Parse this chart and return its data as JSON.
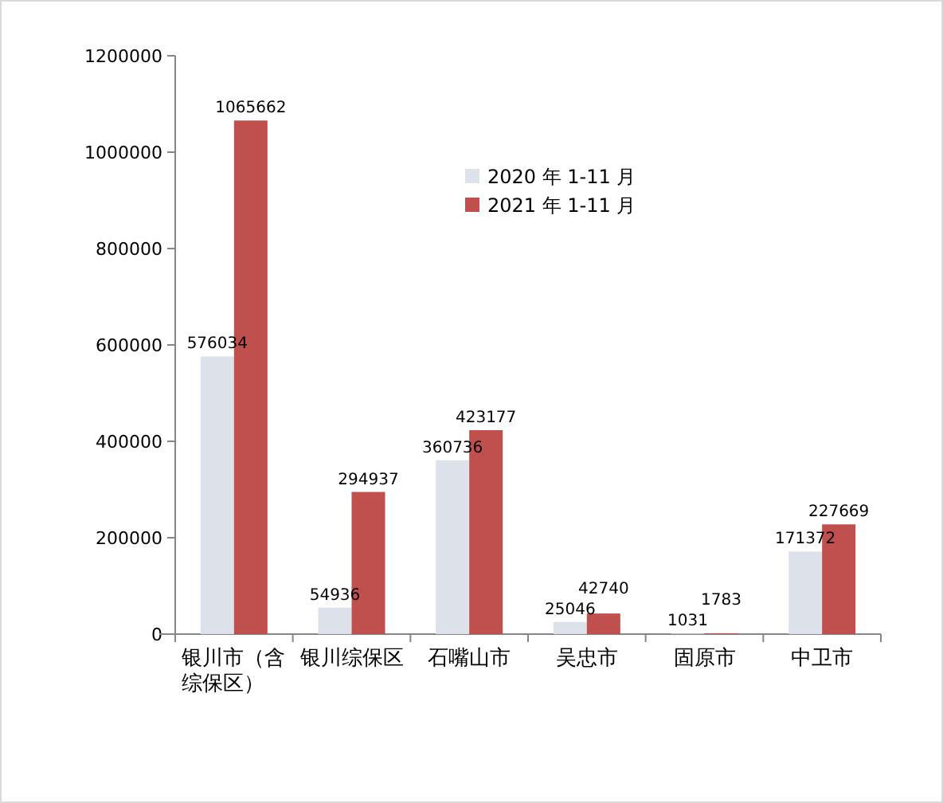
{
  "chart_data": {
    "type": "bar",
    "categories": [
      "银川市（含综保区）",
      "银川综保区",
      "石嘴山市",
      "吴忠市",
      "固原市",
      "中卫市"
    ],
    "series": [
      {
        "name": "2020 年 1-11 月",
        "color": "#dde1e9",
        "values": [
          576034,
          54936,
          360736,
          25046,
          1031,
          171372
        ]
      },
      {
        "name": "2021 年 1-11 月",
        "color": "#c0504d",
        "values": [
          1065662,
          294937,
          423177,
          42740,
          1783,
          227669
        ]
      }
    ],
    "ylim": [
      0,
      1200000
    ],
    "yticks": [
      0,
      200000,
      400000,
      600000,
      800000,
      1000000,
      1200000
    ],
    "data_labels": true,
    "legend": "top",
    "grid": false
  }
}
